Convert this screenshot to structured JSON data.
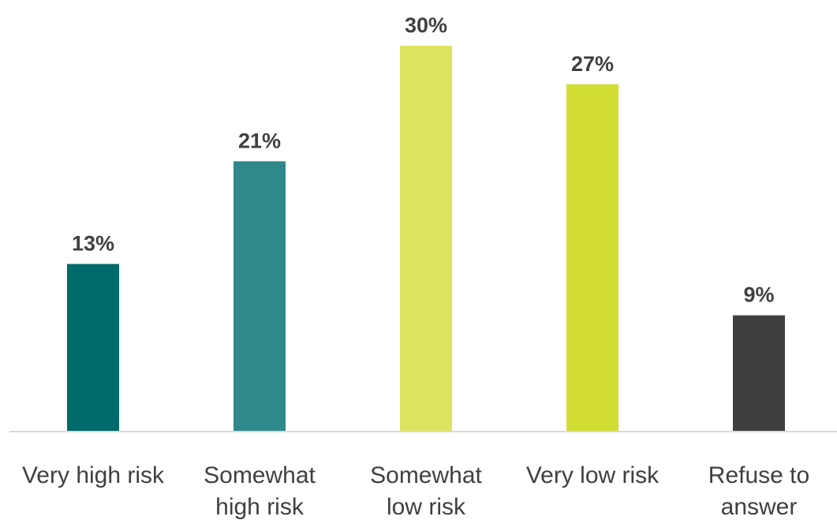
{
  "chart_data": {
    "type": "bar",
    "categories": [
      [
        "Very high risk"
      ],
      [
        "Somewhat",
        "high risk"
      ],
      [
        "Somewhat",
        "low risk"
      ],
      [
        "Very low risk"
      ],
      [
        "Refuse to",
        "answer"
      ]
    ],
    "values": [
      13,
      21,
      30,
      27,
      9
    ],
    "data_labels": [
      "13%",
      "21%",
      "30%",
      "27%",
      "9%"
    ],
    "colors": [
      "#016A6A",
      "#2F888A",
      "#DCE35E",
      "#D3DE35",
      "#3F3F3F"
    ],
    "ylim": [
      0,
      30
    ],
    "grid": false,
    "legend": "none",
    "title": "",
    "xlabel": "",
    "ylabel": ""
  }
}
